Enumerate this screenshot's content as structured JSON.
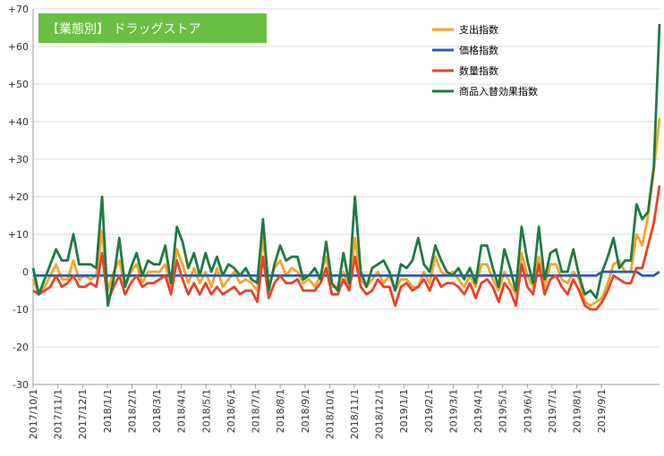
{
  "chart_data": {
    "type": "line",
    "title": "【業態別】 ドラッグストア",
    "title_bg_color": "#6abf45",
    "ylim": [
      -30,
      70
    ],
    "y_ticks": [
      -30,
      -20,
      -10,
      0,
      10,
      20,
      30,
      40,
      50,
      60,
      70
    ],
    "y_tick_labels": [
      "-30",
      "-20",
      "-10",
      "0",
      "+10",
      "+20",
      "+30",
      "+40",
      "+50",
      "+60",
      "+70"
    ],
    "grid": true,
    "legend_position": "top-right",
    "x_labels": [
      "2017/10/1",
      "2017/11/1",
      "2017/12/1",
      "2018/1/1",
      "2018/2/1",
      "2018/3/1",
      "2018/4/1",
      "2018/5/1",
      "2018/6/1",
      "2018/7/1",
      "2018/8/1",
      "2018/9/1",
      "2018/10/1",
      "2018/11/1",
      "2018/12/1",
      "2019/1/1",
      "2019/2/1",
      "2019/3/1",
      "2019/4/1",
      "2019/5/1",
      "2019/6/1",
      "2019/7/1",
      "2019/8/1",
      "2019/9/1"
    ],
    "points_per_month": 4.3,
    "series": [
      {
        "name": "支出指数",
        "color": "#f5a623",
        "values": [
          -2,
          -6,
          -4,
          -1,
          2,
          -2,
          -2,
          3,
          -2,
          -1,
          -2,
          -1,
          11,
          -5,
          0,
          3,
          -4,
          0,
          2,
          -3,
          0,
          0,
          0,
          2,
          -4,
          6,
          2,
          -3,
          1,
          -3,
          0,
          -4,
          1,
          -4,
          -2,
          0,
          -3,
          -2,
          -3,
          -5,
          9,
          -4,
          1,
          3,
          -1,
          1,
          0,
          -3,
          -2,
          -4,
          -1,
          4,
          -4,
          -4,
          0,
          -4,
          9,
          -2,
          -4,
          -2,
          0,
          -3,
          -1,
          -5,
          -2,
          -2,
          -4,
          -4,
          0,
          -3,
          4,
          0,
          -1,
          0,
          -2,
          -4,
          -1,
          -4,
          2,
          2,
          -2,
          -5,
          0,
          -3,
          -6,
          5,
          -1,
          -4,
          4,
          -4,
          2,
          2,
          -2,
          -3,
          0,
          -2,
          -8,
          -9,
          -8,
          -7,
          -3,
          2,
          3,
          0,
          0,
          10,
          7,
          15,
          27,
          41
        ]
      },
      {
        "name": "価格指数",
        "color": "#2a5ab8",
        "values": [
          -1,
          -1,
          -1,
          -1,
          -1,
          -1,
          -1,
          -1,
          -1,
          -1,
          -1,
          -1,
          -1,
          -1,
          -1,
          -1,
          -1,
          -1,
          -1,
          -1,
          -1,
          -1,
          -1,
          -1,
          -1,
          -1,
          -1,
          -1,
          -1,
          -1,
          -1,
          -1,
          -1,
          -1,
          -1,
          -1,
          -1,
          -1,
          -1,
          -1,
          -1,
          -1,
          -1,
          -1,
          -1,
          -1,
          -1,
          -1,
          -1,
          -1,
          -1,
          -1,
          -1,
          -1,
          -1,
          -1,
          -1,
          -1,
          -1,
          -1,
          -1,
          -1,
          -1,
          -1,
          -1,
          -1,
          -1,
          -1,
          -1,
          -1,
          -1,
          -1,
          -1,
          -1,
          -1,
          -1,
          -1,
          -1,
          -1,
          -1,
          -1,
          -1,
          -1,
          -1,
          -1,
          -1,
          -1,
          -1,
          -1,
          -1,
          -1,
          -1,
          -1,
          -1,
          -1,
          -1,
          -1,
          -1,
          -1,
          0,
          0,
          0,
          0,
          0,
          0,
          0,
          -1,
          -1,
          -1,
          0
        ]
      },
      {
        "name": "数量指数",
        "color": "#e8412c",
        "values": [
          -5,
          -6,
          -5,
          -4,
          -1,
          -4,
          -3,
          -1,
          -4,
          -4,
          -3,
          -4,
          5,
          -8,
          -4,
          -1,
          -6,
          -3,
          -1,
          -4,
          -3,
          -3,
          -2,
          -1,
          -6,
          3,
          -2,
          -6,
          -3,
          -6,
          -3,
          -6,
          -4,
          -6,
          -5,
          -4,
          -6,
          -5,
          -5,
          -8,
          4,
          -7,
          -3,
          -1,
          -3,
          -3,
          -2,
          -5,
          -5,
          -5,
          -3,
          1,
          -6,
          -6,
          -2,
          -5,
          4,
          -4,
          -6,
          -5,
          -2,
          -4,
          -4,
          -9,
          -4,
          -3,
          -5,
          -4,
          -2,
          -5,
          -1,
          -4,
          -3,
          -3,
          -4,
          -6,
          -3,
          -7,
          -3,
          -2,
          -4,
          -8,
          -3,
          -5,
          -9,
          2,
          -4,
          -6,
          2,
          -6,
          -2,
          -1,
          -4,
          -6,
          -2,
          -5,
          -9,
          -10,
          -10,
          -8,
          -5,
          -1,
          -2,
          -3,
          -3,
          1,
          1,
          7,
          13,
          23
        ]
      },
      {
        "name": "商品入替効果指数",
        "color": "#1e7a45",
        "values": [
          1,
          -6,
          -2,
          2,
          6,
          3,
          3,
          10,
          2,
          2,
          2,
          1,
          20,
          -9,
          -2,
          9,
          -4,
          1,
          5,
          -1,
          3,
          2,
          2,
          7,
          -3,
          12,
          8,
          1,
          5,
          -1,
          5,
          0,
          4,
          -1,
          2,
          1,
          -1,
          1,
          -2,
          -3,
          14,
          -5,
          2,
          7,
          3,
          4,
          4,
          -2,
          -1,
          1,
          -2,
          8,
          -3,
          -5,
          5,
          -3,
          20,
          0,
          -4,
          1,
          2,
          3,
          0,
          -5,
          2,
          1,
          3,
          9,
          2,
          0,
          7,
          3,
          0,
          -1,
          1,
          -2,
          1,
          -3,
          7,
          7,
          1,
          -4,
          6,
          1,
          -5,
          12,
          3,
          -3,
          12,
          -2,
          5,
          6,
          0,
          0,
          6,
          -1,
          -6,
          -5,
          -7,
          0,
          4,
          9,
          1,
          3,
          3,
          18,
          14,
          16,
          28,
          66
        ]
      }
    ]
  }
}
